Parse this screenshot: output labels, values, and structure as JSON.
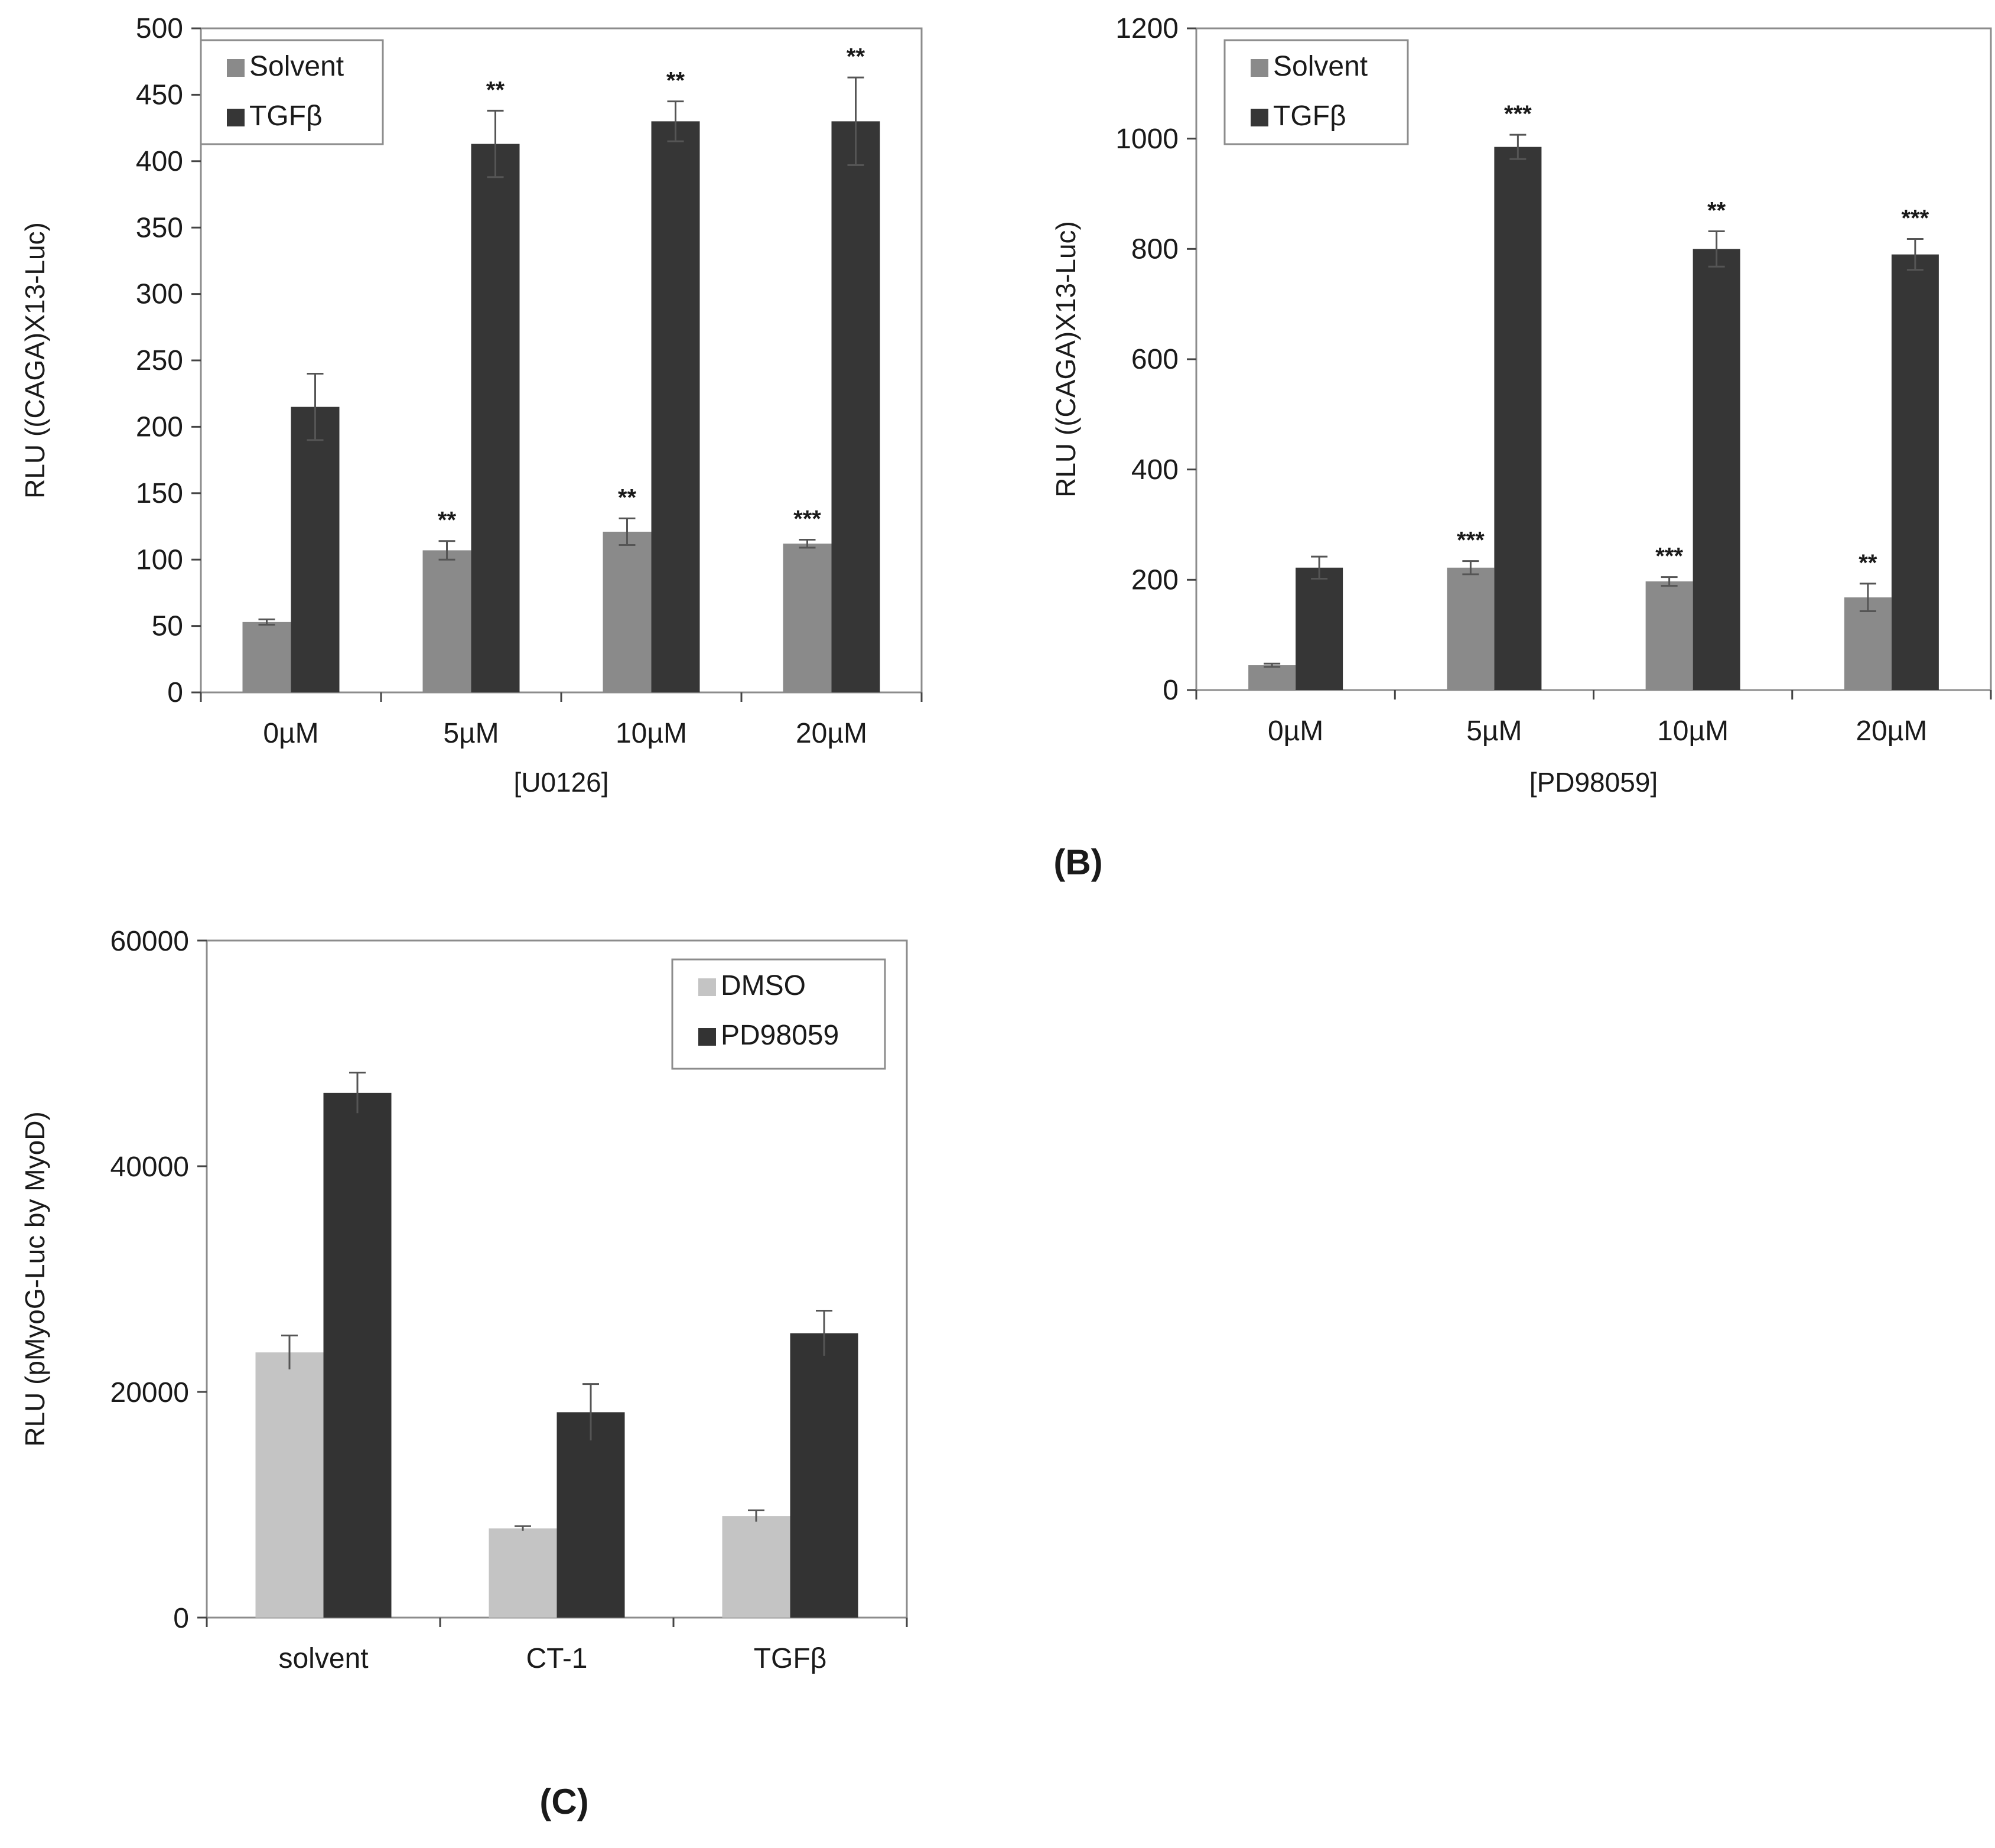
{
  "chart_data": [
    {
      "type": "bar",
      "ylabel": "RLU ((CAGA)X13-Luc)",
      "xlabel": "[U0126]",
      "categories": [
        "0µM",
        "5µM",
        "10µM",
        "20µM"
      ],
      "ylim": [
        0,
        500
      ],
      "yticks": [
        "0",
        "50",
        "100",
        "150",
        "200",
        "250",
        "300",
        "350",
        "400",
        "450",
        "500"
      ],
      "legend_position": "top-left",
      "series": [
        {
          "name": "Solvent",
          "color": "#8a8a8a",
          "values": [
            53,
            107,
            121,
            112
          ],
          "errors": [
            2,
            7,
            10,
            3
          ],
          "significance": [
            "",
            "**",
            "**",
            "***"
          ]
        },
        {
          "name": "TGFβ",
          "color": "#363636",
          "values": [
            215,
            413,
            430,
            430
          ],
          "errors": [
            25,
            25,
            15,
            33
          ],
          "significance": [
            "",
            "**",
            "**",
            "**"
          ]
        }
      ]
    },
    {
      "type": "bar",
      "panel_label": "(B)",
      "ylabel": "RLU ((CAGA)X13-Luc)",
      "xlabel": "[PD98059]",
      "categories": [
        "0µM",
        "5µM",
        "10µM",
        "20µM"
      ],
      "ylim": [
        0,
        1200
      ],
      "yticks": [
        "0",
        "200",
        "400",
        "600",
        "800",
        "1000",
        "1200"
      ],
      "legend_position": "top-left",
      "series": [
        {
          "name": "Solvent",
          "color": "#8a8a8a",
          "values": [
            45,
            222,
            197,
            168
          ],
          "errors": [
            3,
            12,
            8,
            25
          ],
          "significance": [
            "",
            "***",
            "***",
            "**"
          ]
        },
        {
          "name": "TGFβ",
          "color": "#363636",
          "values": [
            222,
            985,
            800,
            790
          ],
          "errors": [
            20,
            22,
            32,
            28
          ],
          "significance": [
            "",
            "***",
            "**",
            "***"
          ]
        }
      ]
    },
    {
      "type": "bar",
      "panel_label": "(C)",
      "ylabel": "RLU (pMyoG-Luc by MyoD)",
      "xlabel": "",
      "categories": [
        "solvent",
        "CT-1",
        "TGFβ"
      ],
      "ylim": [
        0,
        60000
      ],
      "yticks": [
        "0",
        "20000",
        "40000",
        "60000"
      ],
      "legend_position": "top-right",
      "series": [
        {
          "name": "DMSO",
          "color": "#c4c4c4",
          "values": [
            23500,
            7900,
            9000
          ],
          "errors": [
            1500,
            200,
            500
          ],
          "significance": [
            "",
            "",
            ""
          ]
        },
        {
          "name": "PD98059",
          "color": "#333333",
          "values": [
            46500,
            18200,
            25200
          ],
          "errors": [
            1800,
            2500,
            2000
          ],
          "significance": [
            "",
            "",
            ""
          ]
        }
      ]
    }
  ]
}
